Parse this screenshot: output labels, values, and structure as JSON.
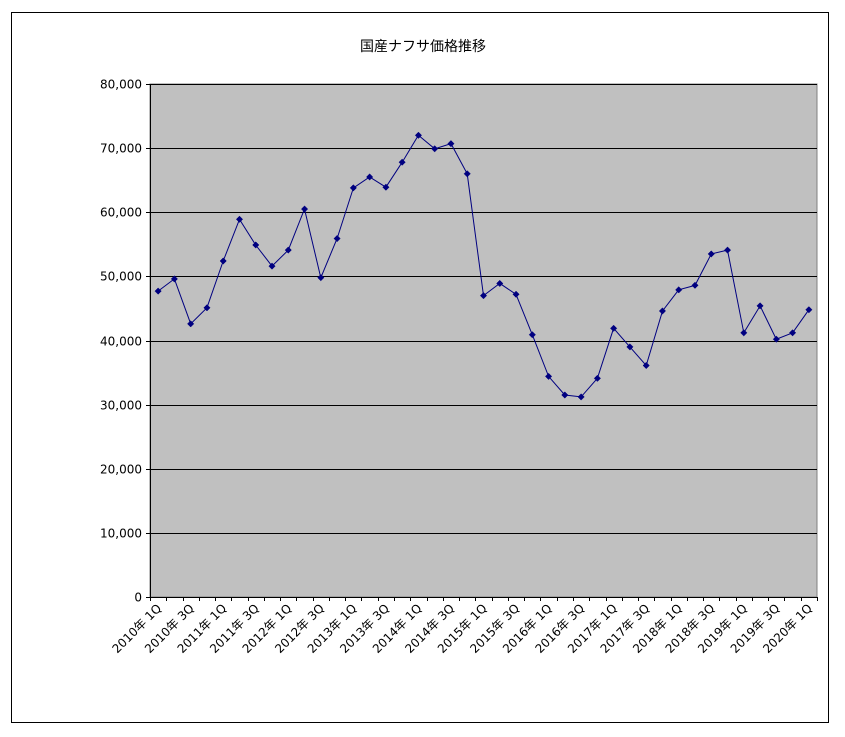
{
  "chart_data": {
    "type": "line",
    "title": "国産ナフサ価格推移",
    "xlabel": "",
    "ylabel": "",
    "ylim": [
      0,
      80000
    ],
    "yticks": [
      0,
      10000,
      20000,
      30000,
      40000,
      50000,
      60000,
      70000,
      80000
    ],
    "ytick_labels": [
      "0",
      "10,000",
      "20,000",
      "30,000",
      "40,000",
      "50,000",
      "60,000",
      "70,000",
      "80,000"
    ],
    "grid": true,
    "legend": "none",
    "colors": {
      "line": "#000080",
      "plot_bg": "#c0c0c0",
      "grid": "#000000"
    },
    "x_labels": [
      "2010年 1Q",
      "2010年 3Q",
      "2011年 1Q",
      "2011年 3Q",
      "2012年 1Q",
      "2012年 3Q",
      "2013年 1Q",
      "2013年 3Q",
      "2014年 1Q",
      "2014年 3Q",
      "2015年 1Q",
      "2015年 3Q",
      "2016年 1Q",
      "2016年 3Q",
      "2017年 1Q",
      "2017年 3Q",
      "2018年 1Q",
      "2018年 3Q",
      "2019年 1Q",
      "2019年 3Q",
      "2020年 1Q"
    ],
    "series": [
      {
        "values": [
          47700,
          49600,
          42600,
          45100,
          52400,
          58900,
          54900,
          51600,
          54100,
          60500,
          49800,
          55900,
          63800,
          65500,
          63900,
          67800,
          72000,
          69900,
          70700,
          66000,
          47000,
          48900,
          47200,
          40900,
          34400,
          31500,
          31200,
          34100,
          41900,
          39000,
          36100,
          44600,
          47900,
          48600,
          53500,
          54100,
          41200,
          45400,
          40200,
          41200,
          44800
        ]
      }
    ]
  }
}
